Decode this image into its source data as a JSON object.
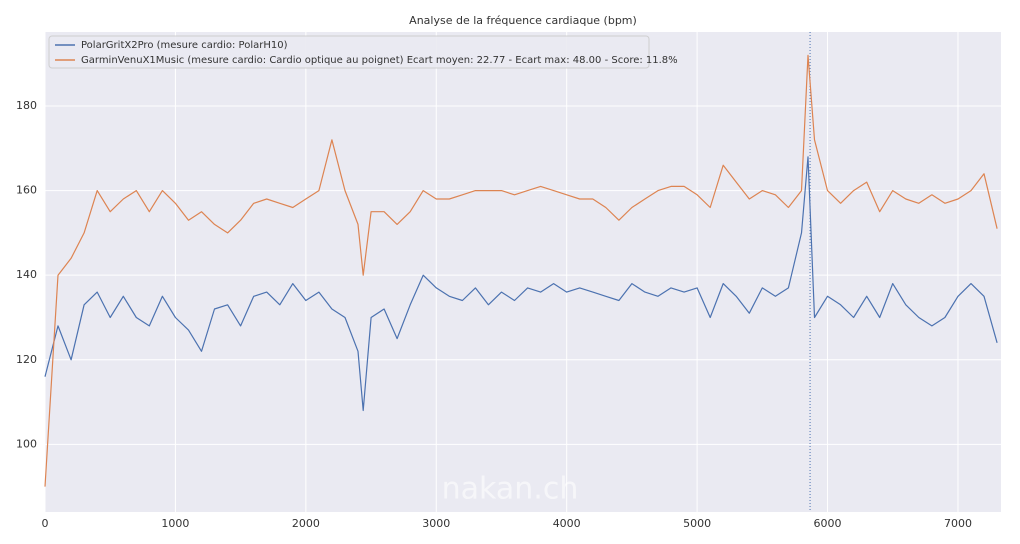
{
  "chart_data": {
    "type": "line",
    "title": "Analyse de la fréquence cardiaque (bpm)",
    "watermark": "nakan.ch",
    "x": [
      0,
      100,
      200,
      300,
      400,
      500,
      600,
      700,
      800,
      900,
      1000,
      1100,
      1200,
      1300,
      1400,
      1500,
      1600,
      1700,
      1800,
      1900,
      2000,
      2100,
      2200,
      2300,
      2400,
      2440,
      2500,
      2600,
      2700,
      2800,
      2900,
      3000,
      3100,
      3200,
      3300,
      3400,
      3500,
      3600,
      3700,
      3800,
      3900,
      4000,
      4100,
      4200,
      4300,
      4400,
      4500,
      4600,
      4700,
      4800,
      4900,
      5000,
      5100,
      5200,
      5300,
      5400,
      5500,
      5600,
      5700,
      5800,
      5850,
      5900,
      6000,
      6100,
      6200,
      6300,
      6400,
      6500,
      6600,
      6700,
      6800,
      6900,
      7000,
      7100,
      7200,
      7300
    ],
    "series": [
      {
        "name": "PolarGritX2Pro (mesure cardio: PolarH10)",
        "color": "#4c72b0",
        "values": [
          116,
          128,
          120,
          133,
          136,
          130,
          135,
          130,
          128,
          135,
          130,
          127,
          122,
          132,
          133,
          128,
          135,
          136,
          133,
          138,
          134,
          136,
          132,
          130,
          122,
          108,
          130,
          132,
          125,
          133,
          140,
          137,
          135,
          134,
          137,
          133,
          136,
          134,
          137,
          136,
          138,
          136,
          137,
          136,
          135,
          134,
          138,
          136,
          135,
          137,
          136,
          137,
          130,
          138,
          135,
          131,
          137,
          135,
          137,
          150,
          168,
          130,
          135,
          133,
          130,
          135,
          130,
          138,
          133,
          130,
          128,
          130,
          135,
          138,
          135,
          124
        ]
      },
      {
        "name": "GarminVenuX1Music (mesure cardio: Cardio optique au poignet) Ecart moyen: 22.77 - Ecart max: 48.00 - Score: 11.8%",
        "color": "#dd8452",
        "values": [
          90,
          140,
          144,
          150,
          160,
          155,
          158,
          160,
          155,
          160,
          157,
          153,
          155,
          152,
          150,
          153,
          157,
          158,
          157,
          156,
          158,
          160,
          172,
          160,
          152,
          140,
          155,
          155,
          152,
          155,
          160,
          158,
          158,
          159,
          160,
          160,
          160,
          159,
          160,
          161,
          160,
          159,
          158,
          158,
          156,
          153,
          156,
          158,
          160,
          161,
          161,
          159,
          156,
          166,
          162,
          158,
          160,
          159,
          156,
          160,
          192,
          172,
          160,
          157,
          160,
          162,
          155,
          160,
          158,
          157,
          159,
          157,
          158,
          160,
          164,
          151
        ]
      }
    ],
    "xlim": [
      0,
      7330
    ],
    "ylim": [
      84,
      197.5
    ],
    "xticks": [
      0,
      1000,
      2000,
      3000,
      4000,
      5000,
      6000,
      7000
    ],
    "yticks": [
      100,
      120,
      140,
      160,
      180
    ],
    "vline": 5866,
    "grid": true,
    "legend": "upper left"
  }
}
